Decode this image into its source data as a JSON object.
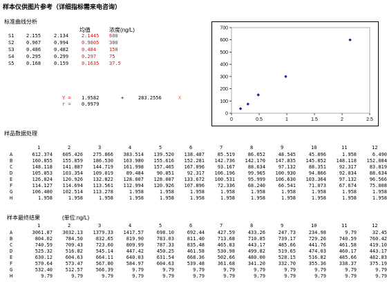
{
  "title": "样本仪供图片参考（详细指标需来电咨询）",
  "std": {
    "section": "标准曲线分析",
    "hdr_mean": "均值",
    "hdr_conc": "浓度(ng/L)",
    "rows": [
      {
        "label": "S1",
        "v1": "2.155",
        "v2": "2.134",
        "mean": "2.1445",
        "conc": "600"
      },
      {
        "label": "S2",
        "v1": "0.967",
        "v2": "0.994",
        "mean": "0.9805",
        "conc": "300"
      },
      {
        "label": "S3",
        "v1": "0.486",
        "v2": "0.482",
        "mean": "0.484",
        "conc": "150"
      },
      {
        "label": "S4",
        "v1": "0.295",
        "v2": "0.299",
        "mean": "0.297",
        "conc": "75"
      },
      {
        "label": "S5",
        "v1": "0.168",
        "v2": "0.159",
        "mean": "0.1635",
        "conc": "37.5"
      }
    ],
    "eq_y_label": "Y =",
    "eq_slope": "1.9582",
    "eq_plus": "+",
    "eq_intercept": "283.2556",
    "eq_x": "X",
    "eq_r_label": "r =",
    "eq_r": "0.9979"
  },
  "chart_data": {
    "type": "scatter",
    "x": [
      2.1445,
      0.9805,
      0.484,
      0.297,
      0.1635
    ],
    "y": [
      600,
      300,
      150,
      75,
      37.5
    ],
    "xlim": [
      0,
      2.5
    ],
    "ylim": [
      0,
      700
    ],
    "xticks": [
      "0",
      "0.5",
      "1",
      "1.5",
      "2",
      "2.5"
    ],
    "yticks": [
      "0",
      "100",
      "200",
      "300",
      "400",
      "500",
      "600",
      "700"
    ],
    "color": "#1f1f9e"
  },
  "sample": {
    "section": "样品数据处理",
    "cols": [
      "1",
      "2",
      "3",
      "4",
      "5",
      "6",
      "7",
      "8",
      "9",
      "10",
      "11",
      "12"
    ],
    "rows": [
      {
        "label": "A",
        "vals": [
          "612.374",
          "605.426",
          "275.866",
          "383.514",
          "139.520",
          "138.487",
          "85.519",
          "86.652",
          "48.545",
          "45.896",
          "1.958",
          "6.490"
        ]
      },
      {
        "label": "B",
        "vals": [
          "160.855",
          "155.859",
          "186.530",
          "163.980",
          "155.616",
          "152.281",
          "142.736",
          "142.170",
          "147.835",
          "145.852",
          "148.118",
          "152.084"
        ]
      },
      {
        "label": "C",
        "vals": [
          "148.118",
          "141.887",
          "144.719",
          "161.998",
          "157.465",
          "167.096",
          "93.167",
          "88.634",
          "97.132",
          "88.351",
          "92.317",
          "83.819"
        ]
      },
      {
        "label": "D",
        "vals": [
          "105.053",
          "103.354",
          "109.019",
          "89.484",
          "90.051",
          "92.317",
          "106.196",
          "99.965",
          "100.930",
          "94.866",
          "92.034",
          "88.634"
        ]
      },
      {
        "label": "E",
        "vals": [
          "126.024",
          "120.926",
          "132.822",
          "128.007",
          "128.007",
          "133.672",
          "100.531",
          "95.999",
          "106.630",
          "103.364",
          "97.132",
          "96.566"
        ]
      },
      {
        "label": "F",
        "vals": [
          "114.127",
          "114.694",
          "113.561",
          "112.994",
          "120.926",
          "107.896",
          "72.336",
          "68.240",
          "66.541",
          "71.073",
          "67.674",
          "75.008"
        ]
      },
      {
        "label": "G",
        "vals": [
          "106.480",
          "102.514",
          "113.278",
          "1.958",
          "1.958",
          "1.958",
          "1.958",
          "1.958",
          "1.958",
          "1.958",
          "1.958",
          "1.958"
        ]
      },
      {
        "label": "H",
        "vals": [
          "1.958",
          "1.958",
          "1.958",
          "1.958",
          "1.958",
          "1.958",
          "1.958",
          "1.958",
          "1.958",
          "1.958",
          "1.958",
          "1.958"
        ]
      }
    ]
  },
  "final": {
    "section": "样本最终结果",
    "unit": "(单位:ng/L)",
    "cols": [
      "1",
      "2",
      "3",
      "4",
      "5",
      "6",
      "7",
      "8",
      "9",
      "10",
      "11",
      "12"
    ],
    "rows": [
      {
        "label": "A",
        "vals": [
          "3061.87",
          "3032.13",
          "1379.33",
          "1417.57",
          "698.10",
          "692.44",
          "427.59",
          "433.26",
          "247.73",
          "234.98",
          "9.79",
          "32.45"
        ]
      },
      {
        "label": "B",
        "vals": [
          "804.02",
          "784.50",
          "832.65",
          "819.90",
          "783.03",
          "811.40",
          "713.68",
          "710.85",
          "739.17",
          "729.26",
          "740.59",
          "760.42"
        ]
      },
      {
        "label": "C",
        "vals": [
          "740.59",
          "709.43",
          "723.60",
          "809.99",
          "787.33",
          "835.48",
          "465.83",
          "443.17",
          "485.66",
          "441.76",
          "461.58",
          "419.10"
        ]
      },
      {
        "label": "D",
        "vals": [
          "525.32",
          "516.82",
          "545.14",
          "447.42",
          "450.25",
          "461.58",
          "530.98",
          "499.82",
          "519.65",
          "474.03",
          "460.17",
          "443.17"
        ]
      },
      {
        "label": "E",
        "vals": [
          "630.12",
          "604.63",
          "664.11",
          "640.03",
          "631.54",
          "668.36",
          "502.66",
          "480.00",
          "528.15",
          "516.82",
          "485.66",
          "482.83"
        ]
      },
      {
        "label": "F",
        "vals": [
          "570.64",
          "573.47",
          "567.80",
          "584.97",
          "604.63",
          "539.48",
          "361.68",
          "341.20",
          "332.70",
          "355.36",
          "338.37",
          "375.19"
        ]
      },
      {
        "label": "G",
        "vals": [
          "532.40",
          "512.57",
          "566.39",
          "9.79",
          "9.79",
          "9.79",
          "9.79",
          "9.79",
          "9.79",
          "9.79",
          "9.79",
          "9.79"
        ]
      },
      {
        "label": "H",
        "vals": [
          "9.79",
          "9.79",
          "9.79",
          "9.79",
          "9.79",
          "9.79",
          "9.79",
          "9.79",
          "9.79",
          "9.79",
          "9.79",
          "9.79"
        ]
      }
    ]
  }
}
